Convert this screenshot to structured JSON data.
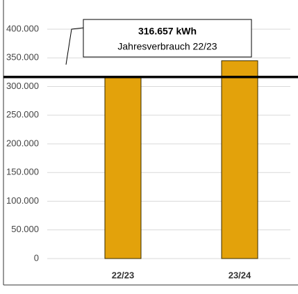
{
  "chart_data": {
    "type": "bar",
    "categories": [
      "22/23",
      "23/24"
    ],
    "values": [
      316657,
      345000
    ],
    "color": "#e3a20b",
    "ylim": [
      0,
      400000
    ],
    "yticks": [
      0,
      {
        "value": 50000,
        "label": "50.000"
      },
      {
        "value": 100000,
        "label": "100.000"
      },
      {
        "value": 150000,
        "label": "150.000"
      },
      {
        "value": 200000,
        "label": "200.000"
      },
      {
        "value": 250000,
        "label": "250.000"
      },
      {
        "value": 300000,
        "label": "300.000"
      },
      {
        "value": 350000,
        "label": "350.000"
      },
      {
        "value": 400000,
        "label": "400.000"
      }
    ],
    "grid": true,
    "reference_line": {
      "value": 316657,
      "label": "316.657 kWh",
      "text": "Jahresverbrauch 22/23"
    }
  }
}
